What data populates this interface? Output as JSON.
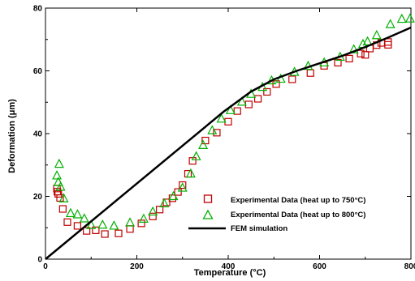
{
  "chart_data": {
    "type": "scatter",
    "xlabel": "Temperature (°C)",
    "ylabel": "Deformation (μm)",
    "xlim": [
      0,
      800
    ],
    "ylim": [
      0,
      80
    ],
    "x_ticks": [
      0,
      200,
      400,
      600,
      800
    ],
    "y_ticks": [
      0,
      20,
      40,
      60,
      80
    ],
    "grid": false,
    "legend_position": "bottom-right",
    "series": [
      {
        "name": "Experimental Data (heat up to 750°C)",
        "marker": "square",
        "color": "#c00000",
        "points": [
          [
            25,
            22.5
          ],
          [
            26,
            21.5
          ],
          [
            28,
            20.8
          ],
          [
            32,
            19.5
          ],
          [
            38,
            16
          ],
          [
            48,
            11.8
          ],
          [
            70,
            10.6
          ],
          [
            90,
            9
          ],
          [
            110,
            9.2
          ],
          [
            130,
            8
          ],
          [
            160,
            8.2
          ],
          [
            185,
            9.6
          ],
          [
            210,
            11.4
          ],
          [
            235,
            13.6
          ],
          [
            250,
            15.8
          ],
          [
            265,
            18.1
          ],
          [
            278,
            19.4
          ],
          [
            290,
            21.4
          ],
          [
            300,
            23.6
          ],
          [
            312,
            27.2
          ],
          [
            322,
            31.3
          ],
          [
            350,
            37.8
          ],
          [
            375,
            40.3
          ],
          [
            400,
            43.8
          ],
          [
            420,
            47.2
          ],
          [
            445,
            49.3
          ],
          [
            465,
            51.1
          ],
          [
            485,
            53.3
          ],
          [
            505,
            55.8
          ],
          [
            540,
            57.3
          ],
          [
            580,
            59.3
          ],
          [
            610,
            61.6
          ],
          [
            640,
            62.6
          ],
          [
            665,
            63.9
          ],
          [
            690,
            65.5
          ],
          [
            700,
            65.1
          ],
          [
            710,
            67.1
          ],
          [
            725,
            68.2
          ],
          [
            735,
            68.9
          ],
          [
            750,
            69.2
          ],
          [
            750,
            68.3
          ]
        ]
      },
      {
        "name": "Experimental Data (heat up to 800°C)",
        "marker": "triangle",
        "color": "#00b000",
        "points": [
          [
            25,
            26.6
          ],
          [
            28,
            24.5
          ],
          [
            30,
            30.3
          ],
          [
            33,
            23
          ],
          [
            40,
            19.3
          ],
          [
            55,
            14.6
          ],
          [
            70,
            14.2
          ],
          [
            85,
            12.9
          ],
          [
            100,
            10.8
          ],
          [
            125,
            10.9
          ],
          [
            150,
            10.6
          ],
          [
            185,
            11.6
          ],
          [
            215,
            12.8
          ],
          [
            235,
            15.1
          ],
          [
            260,
            17.7
          ],
          [
            280,
            20
          ],
          [
            300,
            22.7
          ],
          [
            318,
            27.2
          ],
          [
            330,
            32.7
          ],
          [
            345,
            36.3
          ],
          [
            365,
            41
          ],
          [
            385,
            44.7
          ],
          [
            405,
            47.4
          ],
          [
            430,
            50.1
          ],
          [
            450,
            52.6
          ],
          [
            475,
            54.8
          ],
          [
            495,
            56.9
          ],
          [
            515,
            57.4
          ],
          [
            545,
            59.6
          ],
          [
            575,
            61.5
          ],
          [
            610,
            62.6
          ],
          [
            645,
            64.4
          ],
          [
            675,
            66.8
          ],
          [
            695,
            68.5
          ],
          [
            705,
            69.3
          ],
          [
            725,
            71.3
          ],
          [
            755,
            74.8
          ],
          [
            780,
            76.5
          ],
          [
            798,
            76.6
          ]
        ]
      },
      {
        "name": "FEM simulation",
        "line": "solid",
        "color": "#000000",
        "points": [
          [
            0,
            0
          ],
          [
            390,
            47
          ],
          [
            450,
            53.4
          ],
          [
            500,
            57.3
          ],
          [
            550,
            60
          ],
          [
            600,
            62.4
          ],
          [
            650,
            64.8
          ],
          [
            700,
            67.6
          ],
          [
            750,
            70.6
          ],
          [
            800,
            73.8
          ]
        ]
      }
    ]
  }
}
